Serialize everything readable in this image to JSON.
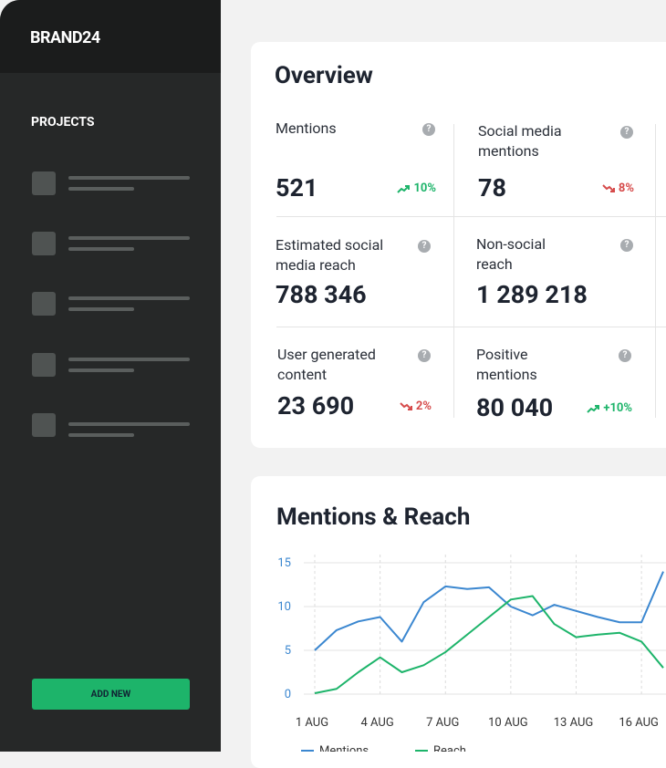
{
  "sidebar": {
    "brand": "BRAND24",
    "section": "PROJECTS",
    "button": "ADD NEW"
  },
  "overview": {
    "title": "Overview",
    "metrics": [
      {
        "label": "Mentions",
        "value": "521",
        "change": "10%",
        "trend": "up"
      },
      {
        "label": "Social media mentions",
        "value": "78",
        "change": "8%",
        "trend": "down"
      },
      {
        "label": "Estimated social media reach",
        "value": "788 346"
      },
      {
        "label": "Non-social reach",
        "value": "1 289 218"
      },
      {
        "label": "User generated content",
        "value": "23 690",
        "change": "2%",
        "trend": "down"
      },
      {
        "label": "Positive mentions",
        "value": "80 040",
        "change": "+10%",
        "trend": "up"
      }
    ]
  },
  "chart_data": {
    "type": "line",
    "title": "Mentions & Reach",
    "x": [
      1,
      2,
      3,
      4,
      5,
      6,
      7,
      8,
      9,
      10,
      11,
      12,
      13,
      14,
      15,
      16,
      17
    ],
    "series": [
      {
        "name": "Mentions",
        "color": "#3b87d0",
        "values": [
          5.0,
          7.3,
          8.3,
          8.8,
          6.0,
          10.5,
          12.3,
          12.0,
          12.2,
          10.0,
          9.0,
          10.2,
          9.5,
          8.8,
          8.2,
          8.2,
          14.0
        ]
      },
      {
        "name": "Reach",
        "color": "#1db46a",
        "values": [
          0.1,
          0.6,
          2.5,
          4.2,
          2.5,
          3.3,
          4.8,
          6.8,
          8.8,
          10.8,
          11.2,
          8.0,
          6.5,
          6.8,
          7.0,
          6.0,
          3.0
        ]
      }
    ],
    "xlim": [
      1,
      17
    ],
    "xticks": [
      {
        "value": 1,
        "label": "1 AUG"
      },
      {
        "value": 4,
        "label": "4 AUG"
      },
      {
        "value": 7,
        "label": "7 AUG"
      },
      {
        "value": 10,
        "label": "10 AUG"
      },
      {
        "value": 13,
        "label": "13 AUG"
      },
      {
        "value": 16,
        "label": "16 AUG"
      }
    ],
    "ylim": [
      0,
      15
    ],
    "yticks": [
      0,
      5,
      10,
      15
    ],
    "grid": true
  }
}
